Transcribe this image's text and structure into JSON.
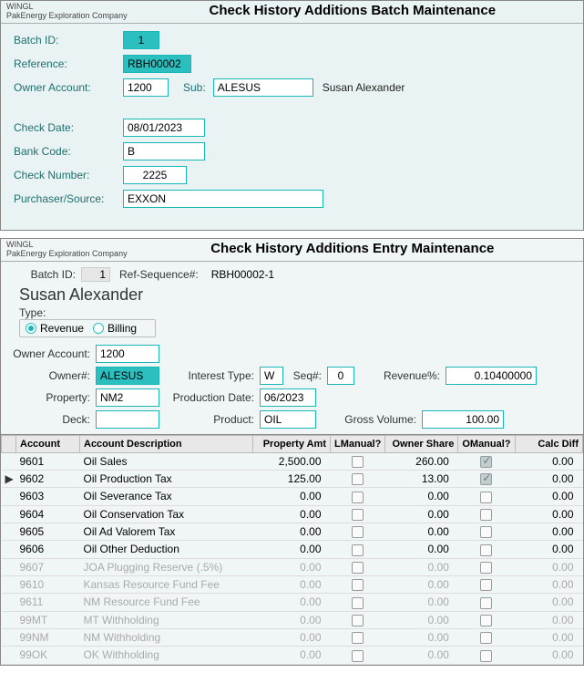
{
  "app_short": "WINGL",
  "app_company": "PakEnergy Exploration Company",
  "batch_window": {
    "title": "Check History Additions Batch Maintenance",
    "labels": {
      "batch_id": "Batch ID:",
      "reference": "Reference:",
      "owner_account": "Owner Account:",
      "sub": "Sub:",
      "check_date": "Check Date:",
      "bank_code": "Bank Code:",
      "check_number": "Check Number:",
      "purchaser": "Purchaser/Source:"
    },
    "values": {
      "batch_id": "1",
      "reference": "RBH00002",
      "owner_account": "1200",
      "sub": "ALESUS",
      "owner_name": "Susan Alexander",
      "check_date": "08/01/2023",
      "bank_code": "B",
      "check_number": "2225",
      "purchaser": "EXXON"
    }
  },
  "entry_window": {
    "title": "Check History Additions Entry Maintenance",
    "header": {
      "batch_id_label": "Batch ID:",
      "batch_id": "1",
      "refseq_label": "Ref-Sequence#:",
      "refseq": "RBH00002-1",
      "name": "Susan Alexander",
      "type_label": "Type:",
      "type_revenue": "Revenue",
      "type_billing": "Billing"
    },
    "labels": {
      "owner_account": "Owner Account:",
      "owner_num": "Owner#:",
      "interest_type": "Interest Type:",
      "seq": "Seq#:",
      "revenue_pct": "Revenue%:",
      "property": "Property:",
      "production_date": "Production Date:",
      "deck": "Deck:",
      "product": "Product:",
      "gross_volume": "Gross Volume:"
    },
    "values": {
      "owner_account": "1200",
      "owner_num": "ALESUS",
      "interest_type": "W",
      "seq": "0",
      "revenue_pct": "0.10400000",
      "property": "NM2",
      "production_date": "06/2023",
      "deck": "",
      "product": "OIL",
      "gross_volume": "100.00"
    },
    "columns": {
      "account": "Account",
      "desc": "Account Description",
      "prop_amt": "Property Amt",
      "lmanual": "LManual?",
      "owner_share": "Owner Share",
      "omanual": "OManual?",
      "calc_diff": "Calc Diff"
    },
    "rows": [
      {
        "mark": "",
        "acct": "9601",
        "desc": "Oil Sales",
        "prop": "2,500.00",
        "lman": false,
        "owner": "260.00",
        "oman": true,
        "diff": "0.00",
        "dim": false
      },
      {
        "mark": "▶",
        "acct": "9602",
        "desc": "Oil Production Tax",
        "prop": "125.00",
        "lman": false,
        "owner": "13.00",
        "oman": true,
        "diff": "0.00",
        "dim": false
      },
      {
        "mark": "",
        "acct": "9603",
        "desc": "Oil Severance Tax",
        "prop": "0.00",
        "lman": false,
        "owner": "0.00",
        "oman": false,
        "diff": "0.00",
        "dim": false
      },
      {
        "mark": "",
        "acct": "9604",
        "desc": "Oil Conservation Tax",
        "prop": "0.00",
        "lman": false,
        "owner": "0.00",
        "oman": false,
        "diff": "0.00",
        "dim": false
      },
      {
        "mark": "",
        "acct": "9605",
        "desc": "Oil Ad Valorem Tax",
        "prop": "0.00",
        "lman": false,
        "owner": "0.00",
        "oman": false,
        "diff": "0.00",
        "dim": false
      },
      {
        "mark": "",
        "acct": "9606",
        "desc": "Oil Other Deduction",
        "prop": "0.00",
        "lman": false,
        "owner": "0.00",
        "oman": false,
        "diff": "0.00",
        "dim": false
      },
      {
        "mark": "",
        "acct": "9607",
        "desc": "JOA Plugging Reserve (.5%)",
        "prop": "0.00",
        "lman": false,
        "owner": "0.00",
        "oman": false,
        "diff": "0.00",
        "dim": true
      },
      {
        "mark": "",
        "acct": "9610",
        "desc": "Kansas Resource Fund Fee",
        "prop": "0.00",
        "lman": false,
        "owner": "0.00",
        "oman": false,
        "diff": "0.00",
        "dim": true
      },
      {
        "mark": "",
        "acct": "9611",
        "desc": "NM Resource Fund Fee",
        "prop": "0.00",
        "lman": false,
        "owner": "0.00",
        "oman": false,
        "diff": "0.00",
        "dim": true
      },
      {
        "mark": "",
        "acct": "99MT",
        "desc": "MT Withholding",
        "prop": "0.00",
        "lman": false,
        "owner": "0.00",
        "oman": false,
        "diff": "0.00",
        "dim": true
      },
      {
        "mark": "",
        "acct": "99NM",
        "desc": "NM Withholding",
        "prop": "0.00",
        "lman": false,
        "owner": "0.00",
        "oman": false,
        "diff": "0.00",
        "dim": true
      },
      {
        "mark": "",
        "acct": "99OK",
        "desc": "OK Withholding",
        "prop": "0.00",
        "lman": false,
        "owner": "0.00",
        "oman": false,
        "diff": "0.00",
        "dim": true
      }
    ]
  }
}
